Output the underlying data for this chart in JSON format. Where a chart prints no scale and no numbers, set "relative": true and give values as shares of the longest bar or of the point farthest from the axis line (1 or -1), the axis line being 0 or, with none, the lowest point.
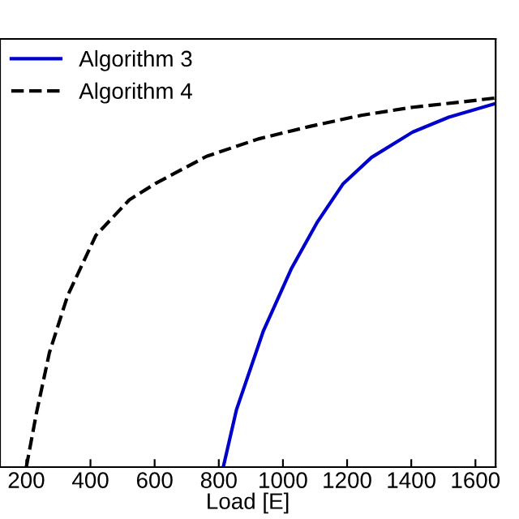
{
  "chart_data": {
    "type": "line",
    "xlabel": "Load [E]",
    "relative": true,
    "xlim": [
      118,
      1663
    ],
    "xticks": [
      200,
      400,
      600,
      800,
      1000,
      1200,
      1400,
      1600
    ],
    "legend": "top left",
    "grid": false,
    "series": [
      {
        "name": "Algorithm 3",
        "color": "#0000cc",
        "line_style": "solid",
        "x": [
          814,
          855,
          939,
          1027,
          1108,
          1188,
          1276,
          1405,
          1517,
          1662
        ],
        "values": [
          0,
          0.155,
          0.369,
          0.539,
          0.665,
          0.768,
          0.839,
          0.908,
          0.948,
          0.985
        ]
      },
      {
        "name": "Algorithm 4",
        "color": "#000000",
        "line_style": "dashed",
        "x": [
          200,
          232,
          272,
          329,
          417,
          521,
          602,
          762,
          923,
          1084,
          1244,
          1405,
          1565,
          1662
        ],
        "values": [
          0,
          0.148,
          0.31,
          0.465,
          0.628,
          0.724,
          0.768,
          0.842,
          0.889,
          0.923,
          0.953,
          0.975,
          0.99,
          1.0
        ]
      }
    ]
  }
}
